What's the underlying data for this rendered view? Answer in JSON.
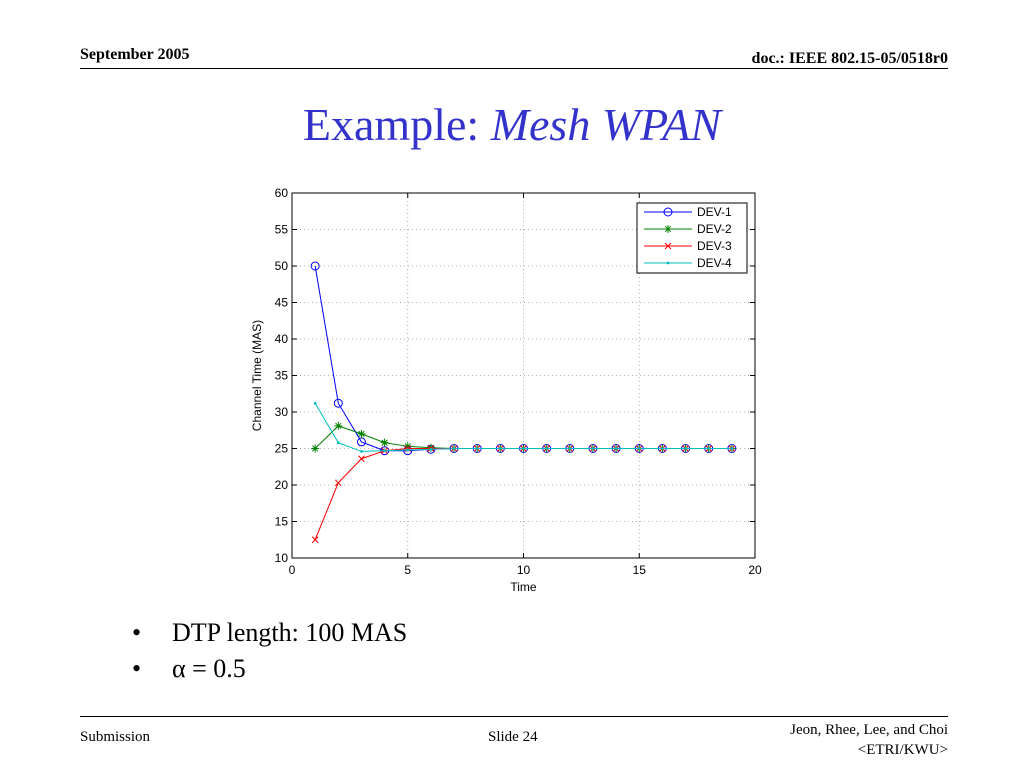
{
  "header": {
    "date": "September 2005",
    "doc": "doc.: IEEE 802.15-05/0518r0"
  },
  "title": {
    "prefix": "Example: ",
    "emphasis": "Mesh WPAN"
  },
  "colors": {
    "title": "#3333cc",
    "dev1": "#0000ff",
    "dev2": "#008000",
    "dev3": "#ff0000",
    "dev4": "#00bfbf"
  },
  "bullets": [
    "DTP length: 100 MAS",
    "α = 0.5"
  ],
  "bullet_symbol": "•",
  "footer": {
    "left": "Submission",
    "center": "Slide 24",
    "right_line1": "Jeon, Rhee, Lee, and Choi",
    "right_line2": "<ETRI/KWU>"
  },
  "chart_data": {
    "type": "line",
    "title": "",
    "xlabel": "Time",
    "ylabel": "Channel Time (MAS)",
    "xlim": [
      0,
      20
    ],
    "ylim": [
      10,
      60
    ],
    "xticks": [
      0,
      5,
      10,
      15,
      20
    ],
    "yticks": [
      10,
      15,
      20,
      25,
      30,
      35,
      40,
      45,
      50,
      55,
      60
    ],
    "grid": true,
    "legend_position": "top-right",
    "x": [
      1,
      2,
      3,
      4,
      5,
      6,
      7,
      8,
      9,
      10,
      11,
      12,
      13,
      14,
      15,
      16,
      17,
      18,
      19
    ],
    "series": [
      {
        "name": "DEV-1",
        "marker": "circle",
        "color": "#0000ff",
        "values": [
          50,
          31.2,
          25.9,
          24.7,
          24.7,
          24.9,
          25,
          25,
          25,
          25,
          25,
          25,
          25,
          25,
          25,
          25,
          25,
          25,
          25
        ]
      },
      {
        "name": "DEV-2",
        "marker": "star",
        "color": "#008000",
        "values": [
          25,
          28.1,
          27,
          25.8,
          25.3,
          25.1,
          25,
          25,
          25,
          25,
          25,
          25,
          25,
          25,
          25,
          25,
          25,
          25,
          25
        ]
      },
      {
        "name": "DEV-3",
        "marker": "x",
        "color": "#ff0000",
        "values": [
          12.5,
          20.3,
          23.6,
          24.7,
          25,
          25,
          25,
          25,
          25,
          25,
          25,
          25,
          25,
          25,
          25,
          25,
          25,
          25,
          25
        ]
      },
      {
        "name": "DEV-4",
        "marker": "point",
        "color": "#00bfbf",
        "values": [
          31.2,
          25.8,
          24.6,
          24.7,
          24.8,
          24.9,
          25,
          25,
          25,
          25,
          25,
          25,
          25,
          25,
          25,
          25,
          25,
          25,
          25
        ]
      }
    ]
  }
}
